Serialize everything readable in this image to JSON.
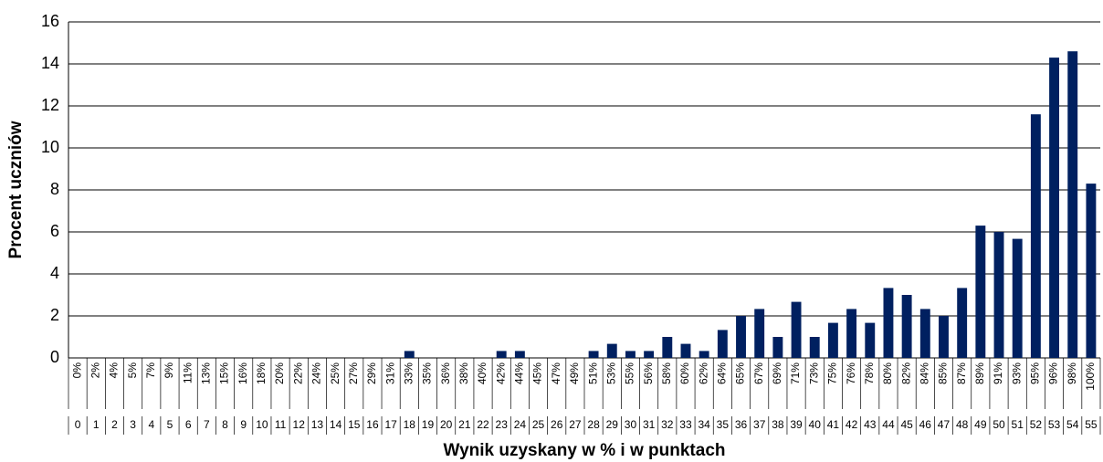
{
  "chart_data": {
    "type": "bar",
    "y_axis_label": "Procent uczniów",
    "x_axis_label": "Wynik uzyskany w % i w punktach",
    "categories": [
      "0",
      "1",
      "2",
      "3",
      "4",
      "5",
      "6",
      "7",
      "8",
      "9",
      "10",
      "11",
      "12",
      "13",
      "14",
      "15",
      "16",
      "17",
      "18",
      "19",
      "20",
      "21",
      "22",
      "23",
      "24",
      "25",
      "26",
      "27",
      "28",
      "29",
      "30",
      "31",
      "32",
      "33",
      "34",
      "35",
      "36",
      "37",
      "38",
      "39",
      "40",
      "41",
      "42",
      "43",
      "44",
      "45",
      "46",
      "47",
      "48",
      "49",
      "50",
      "51",
      "52",
      "53",
      "54",
      "55"
    ],
    "percent_labels": [
      "0%",
      "2%",
      "4%",
      "5%",
      "7%",
      "9%",
      "11%",
      "13%",
      "15%",
      "16%",
      "18%",
      "20%",
      "22%",
      "24%",
      "25%",
      "27%",
      "29%",
      "31%",
      "33%",
      "35%",
      "36%",
      "38%",
      "40%",
      "42%",
      "44%",
      "45%",
      "47%",
      "49%",
      "51%",
      "53%",
      "55%",
      "56%",
      "58%",
      "60%",
      "62%",
      "64%",
      "65%",
      "67%",
      "69%",
      "71%",
      "73%",
      "75%",
      "76%",
      "78%",
      "80%",
      "82%",
      "84%",
      "85%",
      "87%",
      "89%",
      "91%",
      "93%",
      "95%",
      "96%",
      "98%",
      "100%"
    ],
    "values": [
      0,
      0,
      0,
      0,
      0,
      0,
      0,
      0,
      0,
      0,
      0,
      0,
      0,
      0,
      0,
      0,
      0,
      0,
      0.33,
      0,
      0,
      0,
      0,
      0.33,
      0.33,
      0,
      0,
      0,
      0.33,
      0.67,
      0.33,
      0.33,
      1.0,
      0.67,
      0.33,
      1.33,
      2.0,
      2.33,
      1.0,
      2.67,
      1.0,
      1.67,
      2.33,
      1.67,
      3.33,
      3.0,
      2.33,
      2.0,
      3.33,
      6.3,
      6.0,
      5.67,
      11.6,
      14.3,
      14.6,
      8.3
    ],
    "color": "#002060",
    "ylim": [
      0,
      16
    ],
    "yticks": [
      0,
      2,
      4,
      6,
      8,
      10,
      12,
      14,
      16
    ],
    "grid": true
  }
}
